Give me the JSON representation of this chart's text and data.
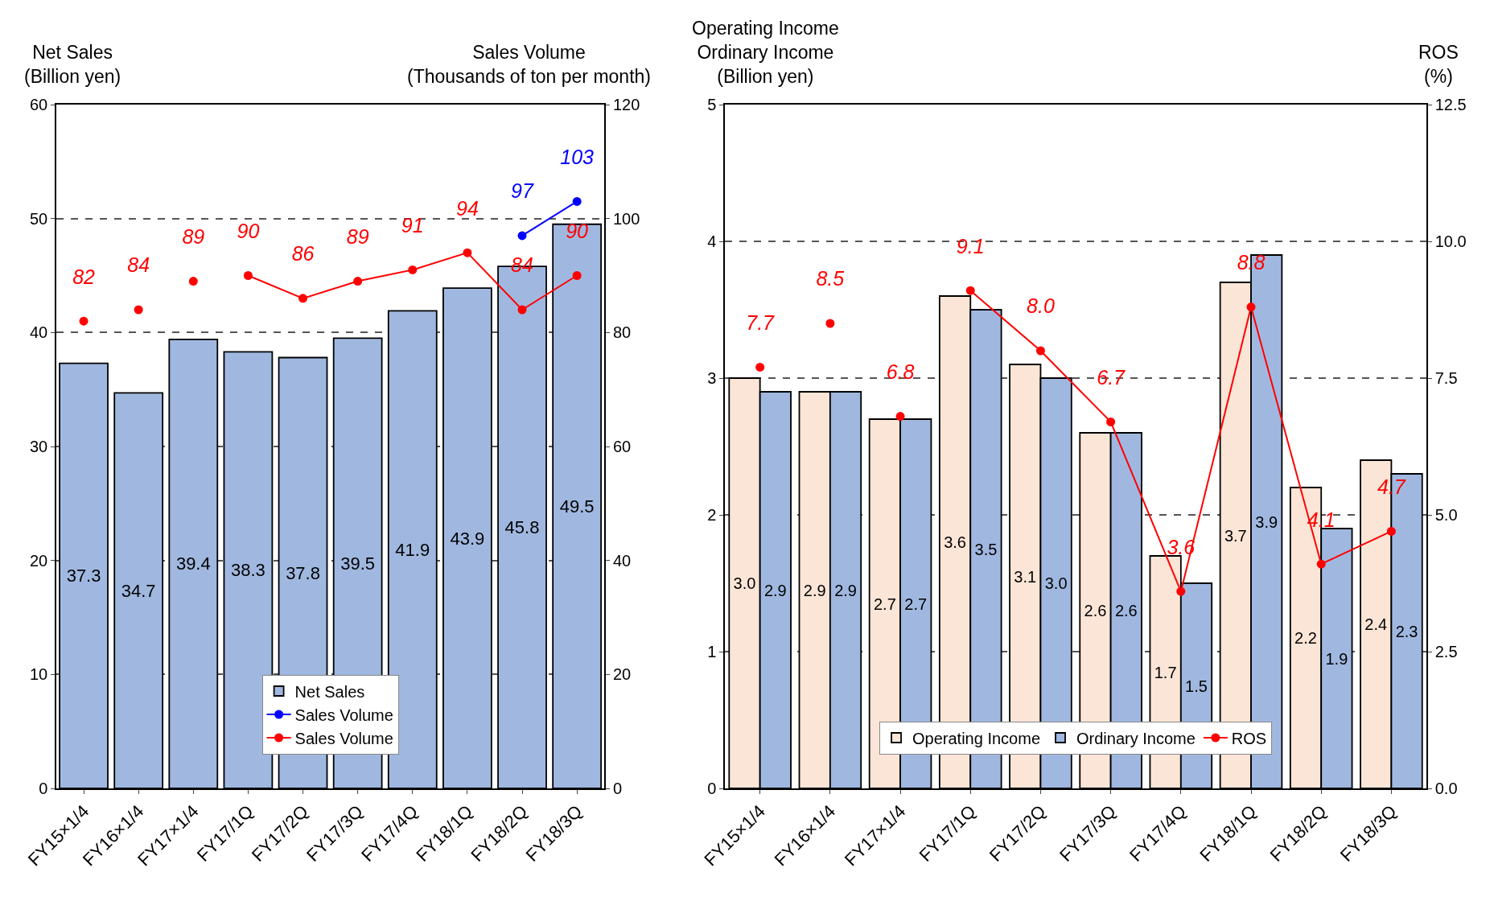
{
  "chart_data": [
    {
      "type": "bar",
      "ylabel": "Net Sales\n(Billion yen)",
      "y2label": "Sales Volume\n(Thousands of ton per month)",
      "categories": [
        "FY15×1/4",
        "FY16×1/4",
        "FY17×1/4",
        "FY17/1Q",
        "FY17/2Q",
        "FY17/3Q",
        "FY17/4Q",
        "FY18/1Q",
        "FY18/2Q",
        "FY18/3Q"
      ],
      "series": [
        {
          "name": "Net Sales",
          "color": "#a0b8e0",
          "values": [
            37.3,
            34.7,
            39.4,
            38.3,
            37.8,
            39.5,
            41.9,
            43.9,
            45.8,
            49.5
          ]
        },
        {
          "type": "line",
          "axis": "y2",
          "name": "Sales Volume",
          "color": "#0000ff",
          "values": [
            null,
            null,
            null,
            null,
            null,
            null,
            null,
            null,
            97,
            103
          ]
        },
        {
          "type": "line",
          "axis": "y2",
          "name": "Sales Volume",
          "color": "#ff0000",
          "values": [
            null,
            null,
            null,
            90,
            86,
            89,
            91,
            94,
            84,
            90
          ]
        },
        {
          "type": "scatter",
          "axis": "y2",
          "color": "#ff0000",
          "values": [
            82,
            84,
            89,
            null,
            null,
            null,
            null,
            null,
            null,
            null
          ]
        }
      ],
      "ylim": [
        0,
        60
      ],
      "yticks": [
        0,
        10,
        20,
        30,
        40,
        50,
        60
      ],
      "y2lim": [
        0,
        120
      ],
      "y2ticks": [
        0,
        20,
        40,
        60,
        80,
        100,
        120
      ],
      "data_labels": true,
      "grid": "y",
      "legend": "bottom",
      "marker": "circle",
      "line_style": "solid"
    },
    {
      "type": "bar",
      "ylabel": "Operating Income\nOrdinary Income\n(Billion yen)",
      "y2label": "ROS\n(%)",
      "categories": [
        "FY15×1/4",
        "FY16×1/4",
        "FY17×1/4",
        "FY17/1Q",
        "FY17/2Q",
        "FY17/3Q",
        "FY17/4Q",
        "FY18/1Q",
        "FY18/2Q",
        "FY18/3Q"
      ],
      "series": [
        {
          "name": "Operating Income",
          "color": "#fbe5d6",
          "values": [
            3.0,
            2.9,
            2.7,
            3.6,
            3.1,
            2.6,
            1.7,
            3.7,
            2.2,
            2.4
          ],
          "value_labels": [
            "3.0",
            "2.9",
            "2.7",
            "3.6",
            "3.1",
            "2.6",
            "1.7",
            "3.7",
            "2.2",
            "2.4"
          ]
        },
        {
          "name": "Ordinary Income",
          "color": "#a0b8e0",
          "values": [
            2.9,
            2.9,
            2.7,
            3.5,
            3.0,
            2.6,
            1.5,
            3.9,
            1.9,
            2.3
          ],
          "value_labels": [
            "2.9",
            "2.9",
            "2.7",
            "3.5",
            "3.0",
            "2.6",
            "1.5",
            "3.9",
            "1.9",
            "2.3"
          ]
        },
        {
          "type": "line",
          "axis": "y2",
          "name": "ROS",
          "color": "#ff0000",
          "values": [
            null,
            null,
            null,
            9.1,
            8.0,
            6.7,
            3.6,
            8.8,
            4.1,
            4.7
          ],
          "value_labels": [
            null,
            null,
            null,
            "9.1",
            "8.0",
            "6.7",
            "3.6",
            "8.8",
            "4.1",
            "4.7"
          ]
        },
        {
          "type": "scatter",
          "axis": "y2",
          "color": "#ff0000",
          "values": [
            7.7,
            8.5,
            6.8,
            null,
            null,
            null,
            null,
            null,
            null,
            null
          ],
          "value_labels": [
            "7.7",
            "8.5",
            "6.8",
            null,
            null,
            null,
            null,
            null,
            null,
            null
          ]
        }
      ],
      "ylim": [
        0,
        5
      ],
      "yticks": [
        0,
        1,
        2,
        3,
        4,
        5
      ],
      "y2lim": [
        0,
        12.5
      ],
      "y2ticks": [
        {
          "value": 0,
          "label": "0.0"
        },
        {
          "value": 2.5,
          "label": "2.5"
        },
        {
          "value": 5,
          "label": "5.0"
        },
        {
          "value": 7.5,
          "label": "7.5"
        },
        {
          "value": 10,
          "label": "10.0"
        },
        {
          "value": 12.5,
          "label": "12.5"
        }
      ],
      "data_labels": true,
      "grid": "y",
      "legend": "bottom",
      "marker": "circle",
      "line_style": "solid"
    }
  ]
}
